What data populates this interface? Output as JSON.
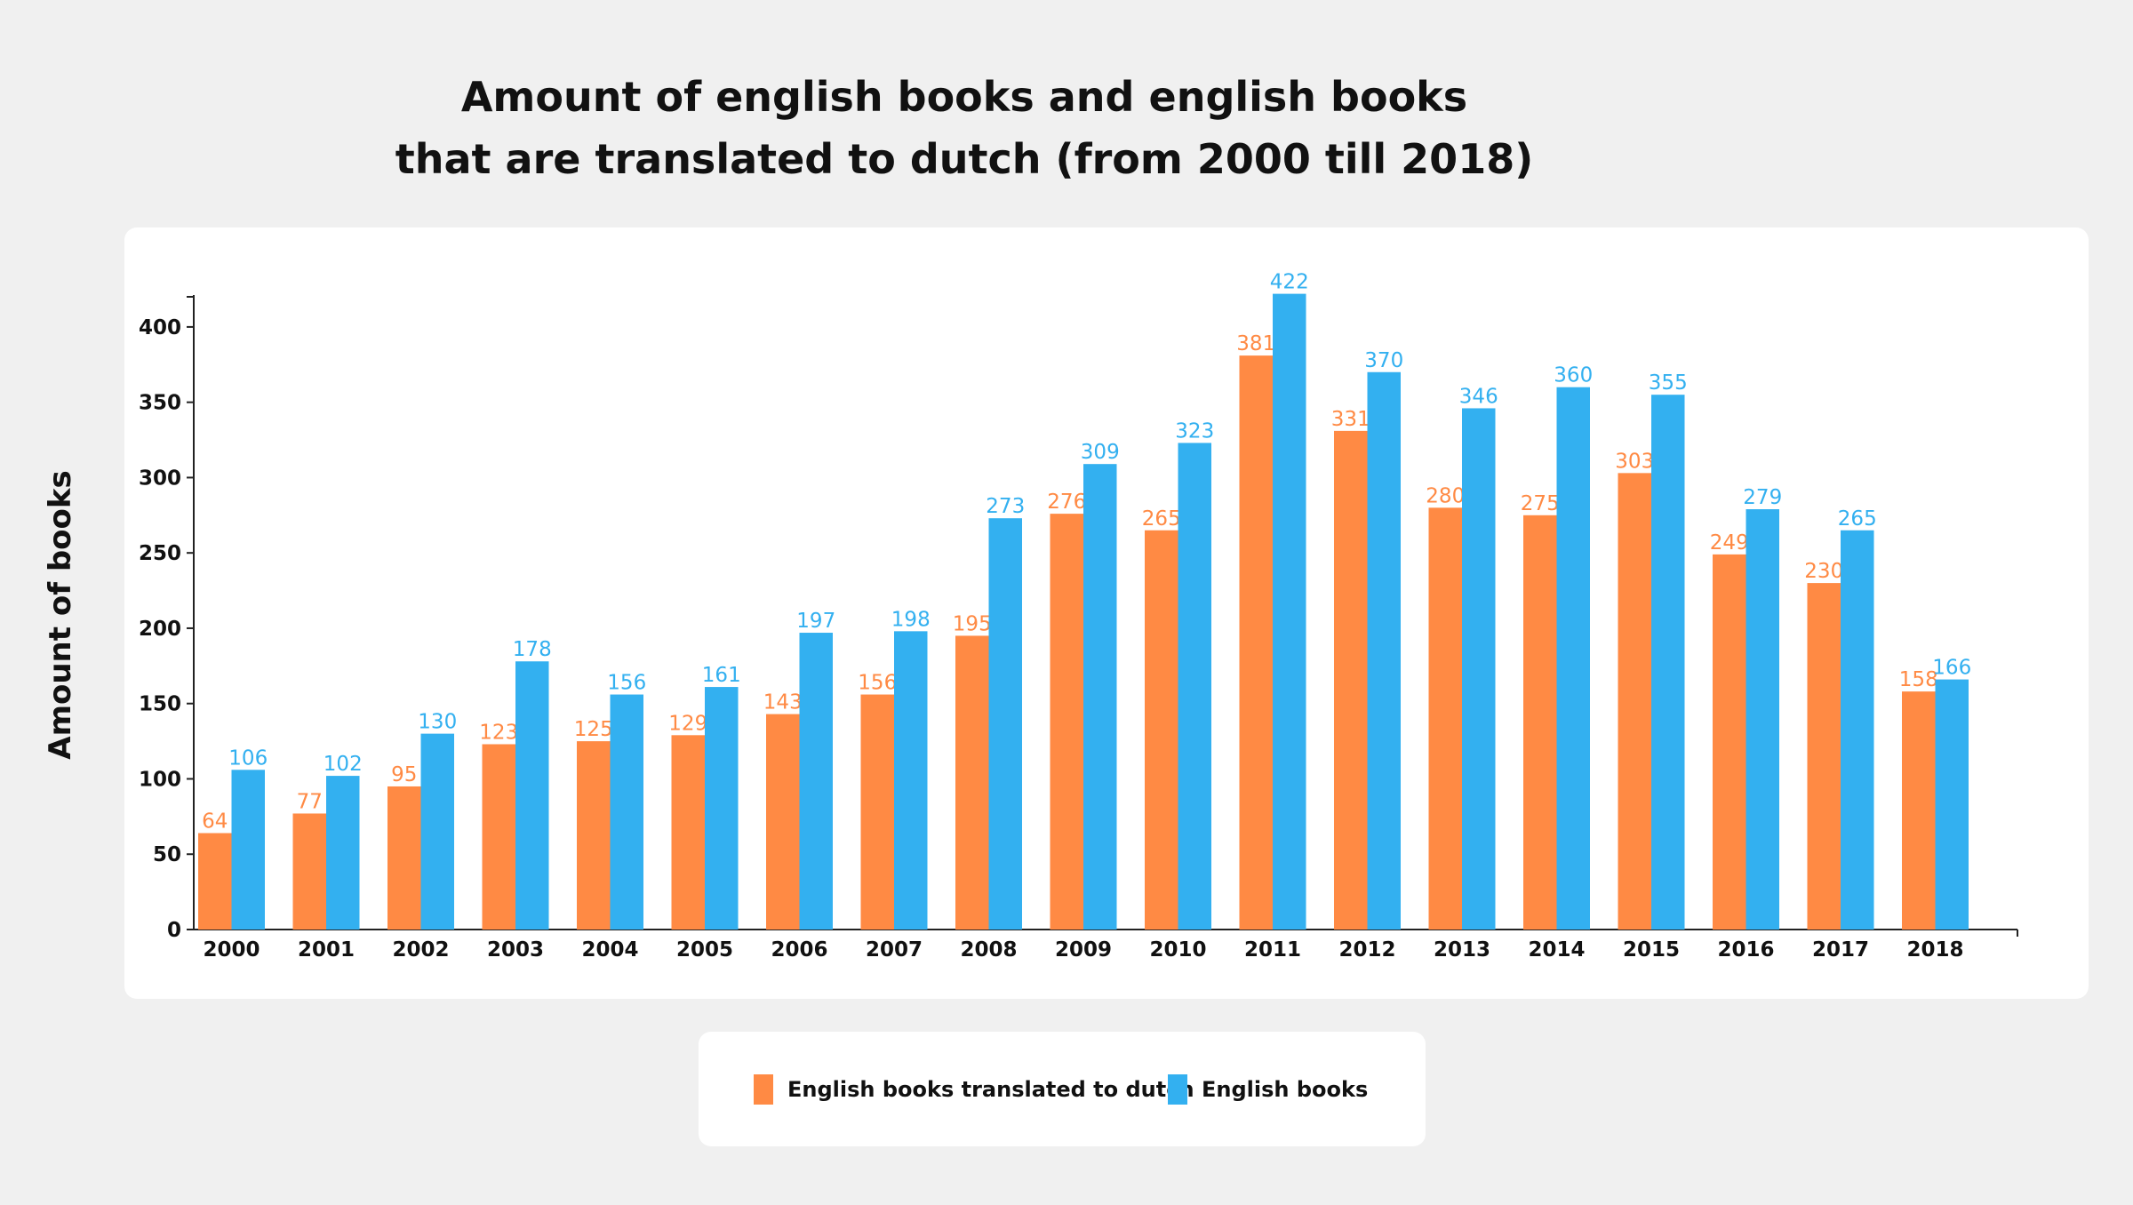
{
  "colors": {
    "background": "#f0f0f0",
    "card": "#ffffff",
    "translated": "#ff8a44",
    "english": "#33b0f0",
    "axis": "#222222",
    "text": "#111111"
  },
  "chart_data": {
    "type": "bar",
    "title_lines": [
      "Amount of english books and english books",
      "that are translated to dutch (from 2000 till 2018)"
    ],
    "xlabel": "",
    "ylabel": "Amount of books",
    "ylim": [
      0,
      420
    ],
    "yticks": [
      0,
      50,
      100,
      150,
      200,
      250,
      300,
      350,
      400
    ],
    "grid": false,
    "legend_position": "bottom",
    "categories": [
      "2000",
      "2001",
      "2002",
      "2003",
      "2004",
      "2005",
      "2006",
      "2007",
      "2008",
      "2009",
      "2010",
      "2011",
      "2012",
      "2013",
      "2014",
      "2015",
      "2016",
      "2017",
      "2018"
    ],
    "series": [
      {
        "name": "English books translated to dutch",
        "color": "#ff8a44",
        "values": [
          64,
          77,
          95,
          123,
          125,
          129,
          143,
          156,
          195,
          276,
          265,
          381,
          331,
          280,
          275,
          303,
          249,
          230,
          158
        ]
      },
      {
        "name": "English books",
        "color": "#33b0f0",
        "values": [
          106,
          102,
          130,
          178,
          156,
          161,
          197,
          198,
          273,
          309,
          323,
          422,
          370,
          346,
          360,
          355,
          279,
          265,
          166
        ]
      }
    ]
  }
}
